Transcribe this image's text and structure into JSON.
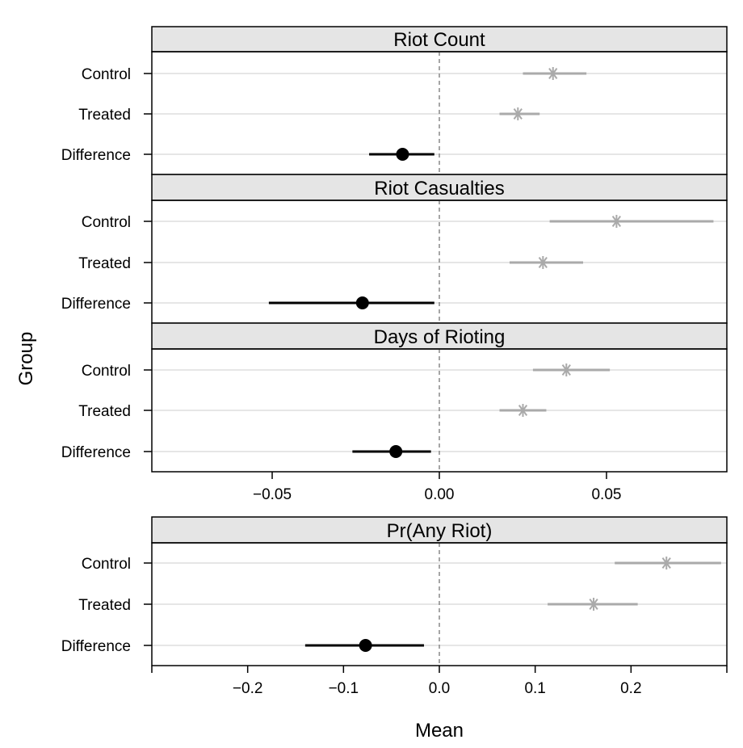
{
  "axis": {
    "xlabel": "Mean",
    "ylabel": "Group"
  },
  "colors": {
    "difference": "#000000",
    "group": "#aaaaaa",
    "strip_fill": "#e5e5e5",
    "grid": "#e6e6e6",
    "zero_line": "#888888"
  },
  "chart_data": [
    {
      "type": "dot-interval",
      "title": "Riot Count",
      "categories": [
        "Control",
        "Treated",
        "Difference"
      ],
      "estimates": [
        0.034,
        0.0235,
        -0.011
      ],
      "lower": [
        0.025,
        0.018,
        -0.021
      ],
      "upper": [
        0.044,
        0.03,
        -0.0015
      ],
      "xlim": [
        -0.086,
        0.086
      ],
      "xticks": [
        -0.05,
        0.0,
        0.05
      ],
      "xtick_labels": [
        "−0.05",
        "0.00",
        "0.05"
      ],
      "show_x_axis": false
    },
    {
      "type": "dot-interval",
      "title": "Riot Casualties",
      "categories": [
        "Control",
        "Treated",
        "Difference"
      ],
      "estimates": [
        0.053,
        0.031,
        -0.023
      ],
      "lower": [
        0.033,
        0.021,
        -0.051
      ],
      "upper": [
        0.082,
        0.043,
        -0.0015
      ],
      "xlim": [
        -0.086,
        0.086
      ],
      "xticks": [
        -0.05,
        0.0,
        0.05
      ],
      "xtick_labels": [
        "−0.05",
        "0.00",
        "0.05"
      ],
      "show_x_axis": false
    },
    {
      "type": "dot-interval",
      "title": "Days of Rioting",
      "categories": [
        "Control",
        "Treated",
        "Difference"
      ],
      "estimates": [
        0.038,
        0.025,
        -0.013
      ],
      "lower": [
        0.028,
        0.018,
        -0.026
      ],
      "upper": [
        0.051,
        0.032,
        -0.0025
      ],
      "xlim": [
        -0.086,
        0.086
      ],
      "xticks": [
        -0.05,
        0.0,
        0.05
      ],
      "xtick_labels": [
        "−0.05",
        "0.00",
        "0.05"
      ],
      "show_x_axis": true
    },
    {
      "type": "dot-interval",
      "title": "Pr(Any Riot)",
      "categories": [
        "Control",
        "Treated",
        "Difference"
      ],
      "estimates": [
        0.237,
        0.161,
        -0.077
      ],
      "lower": [
        0.183,
        0.113,
        -0.14
      ],
      "upper": [
        0.294,
        0.207,
        -0.016
      ],
      "xlim": [
        -0.3,
        0.3
      ],
      "xticks": [
        -0.3,
        -0.2,
        -0.1,
        0.0,
        0.1,
        0.2,
        0.3
      ],
      "xtick_labels": [
        "",
        "−0.2",
        "−0.1",
        "0.0",
        "0.1",
        "0.2",
        ""
      ],
      "show_x_axis": true
    }
  ]
}
